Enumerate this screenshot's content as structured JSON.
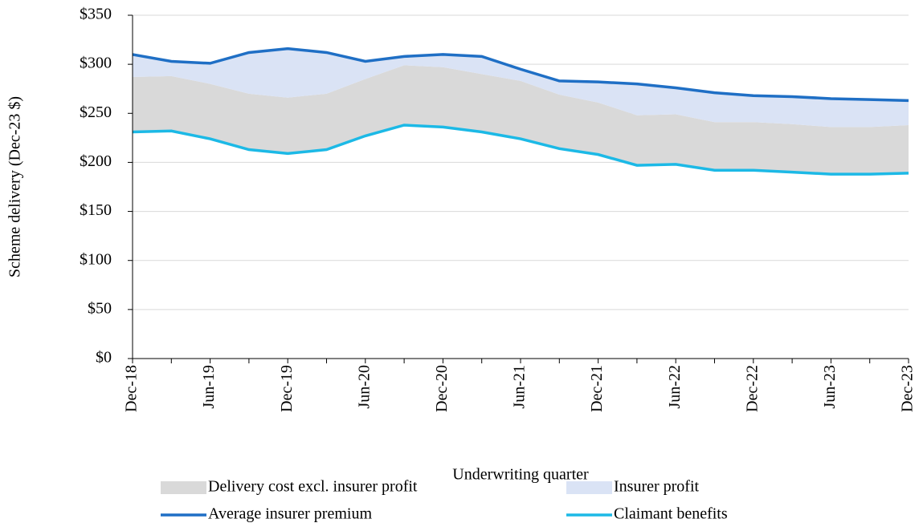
{
  "chart_data": {
    "type": "line",
    "y_label": "Scheme delivery (Dec-23 $)",
    "x_label": "Underwriting quarter",
    "categories": [
      "Dec-18",
      null,
      "Jun-19",
      null,
      "Dec-19",
      null,
      "Jun-20",
      null,
      "Dec-20",
      null,
      "Jun-21",
      null,
      "Dec-21",
      null,
      "Jun-22",
      null,
      "Dec-22",
      null,
      "Jun-23",
      null,
      "Dec-23"
    ],
    "series": [
      {
        "name": "Claimant  benefits",
        "color": "#1cb9e6",
        "mark": "line",
        "stacked": true,
        "values": [
          231,
          232,
          224,
          213,
          209,
          213,
          227,
          238,
          236,
          231,
          224,
          214,
          208,
          197,
          198,
          192,
          192,
          190,
          188,
          188,
          189
        ]
      },
      {
        "name": "Delivery cost excl. insurer profit",
        "color": "#d9d9d9",
        "mark": "area",
        "stacked": true,
        "values": [
          56,
          56,
          56,
          57,
          57,
          57,
          58,
          61,
          61,
          59,
          59,
          55,
          53,
          51,
          51,
          49,
          49,
          49,
          48,
          48,
          49
        ]
      },
      {
        "name": "Insurer profit",
        "color": "#dae3f5",
        "mark": "area",
        "stacked": true,
        "values": [
          23,
          15,
          21,
          42,
          50,
          42,
          18,
          9,
          13,
          18,
          12,
          14,
          21,
          32,
          27,
          30,
          27,
          28,
          29,
          28,
          25
        ]
      },
      {
        "name": "Average insurer premium",
        "color": "#1f6fc5",
        "mark": "line",
        "stacked": false,
        "values": [
          310,
          303,
          301,
          312,
          316,
          312,
          303,
          308,
          310,
          308,
          295,
          283,
          282,
          280,
          276,
          271,
          268,
          267,
          265,
          264,
          263
        ]
      }
    ],
    "ylim": [
      0,
      350
    ],
    "yticks": [
      {
        "value": 0,
        "label": "$0"
      },
      {
        "value": 50,
        "label": "$50"
      },
      {
        "value": 100,
        "label": "$100"
      },
      {
        "value": 150,
        "label": "$150"
      },
      {
        "value": 200,
        "label": "$200"
      },
      {
        "value": 250,
        "label": "$250"
      },
      {
        "value": 300,
        "label": "$300"
      },
      {
        "value": 350,
        "label": "$350"
      }
    ],
    "grid": true,
    "legend": "bottom"
  }
}
